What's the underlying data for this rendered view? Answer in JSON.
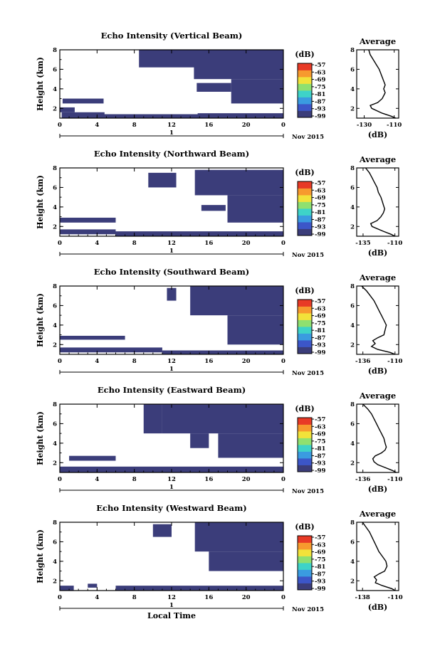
{
  "chart_data": [
    {
      "type": "heatmap",
      "title": "Echo Intensity (Vertical Beam)",
      "ylabel": "Height (km)",
      "xlim": [
        0,
        24
      ],
      "ylim": [
        1,
        8
      ],
      "xticks": [
        "0",
        "4",
        "8",
        "12",
        "16",
        "20",
        "0"
      ],
      "yticks": [
        "2",
        "4",
        "6",
        "8"
      ],
      "date_axis": {
        "day_label": "1",
        "month_label": "Nov 2015"
      },
      "colorbar": {
        "unit": "(dB)",
        "ticks": [
          "-57",
          "-63",
          "-69",
          "-75",
          "-81",
          "-87",
          "-93",
          "-99"
        ],
        "colors": [
          "#3b3d7a",
          "#3c56c8",
          "#3a9be0",
          "#3ed3c8",
          "#8fe070",
          "#f2e23a",
          "#f79a2e",
          "#e83a26"
        ]
      },
      "echo_regions": [
        {
          "x": [
            0.2,
            4.8
          ],
          "y": [
            1.0,
            1.6
          ]
        },
        {
          "x": [
            0.0,
            1.6
          ],
          "y": [
            1.6,
            2.1
          ]
        },
        {
          "x": [
            0.3,
            4.7
          ],
          "y": [
            2.5,
            3.0
          ]
        },
        {
          "x": [
            4.6,
            14.9
          ],
          "y": [
            1.0,
            1.4
          ]
        },
        {
          "x": [
            8.5,
            15.0
          ],
          "y": [
            6.2,
            8.0
          ]
        },
        {
          "x": [
            14.8,
            24.0
          ],
          "y": [
            1.0,
            1.5
          ]
        },
        {
          "x": [
            14.7,
            18.4
          ],
          "y": [
            3.7,
            4.6
          ]
        },
        {
          "x": [
            14.4,
            24.0
          ],
          "y": [
            5.0,
            8.0
          ]
        },
        {
          "x": [
            18.4,
            24.0
          ],
          "y": [
            2.5,
            5.0
          ]
        }
      ],
      "profile": {
        "title": "Average",
        "xlabel": "(dB)",
        "xticks": [
          "-130",
          "-110"
        ],
        "xlim": [
          -135,
          -107
        ],
        "ylim": [
          1,
          8
        ],
        "yticks": [
          "2",
          "4",
          "6",
          "8"
        ],
        "heights": [
          1.0,
          1.2,
          1.5,
          2.0,
          2.3,
          2.6,
          3.0,
          3.3,
          3.6,
          4.0,
          4.4,
          4.8,
          5.2,
          5.6,
          6.0,
          6.5,
          7.0,
          7.5,
          8.0
        ],
        "values": [
          -109,
          -112,
          -118,
          -125,
          -126,
          -121,
          -118,
          -117,
          -116,
          -117,
          -116,
          -117,
          -118,
          -119,
          -120,
          -122,
          -124,
          -126,
          -127
        ]
      }
    },
    {
      "type": "heatmap",
      "title": "Echo Intensity (Northward Beam)",
      "ylabel": "Height (km)",
      "xlim": [
        0,
        24
      ],
      "ylim": [
        1,
        8
      ],
      "xticks": [
        "0",
        "4",
        "8",
        "12",
        "16",
        "20",
        "0"
      ],
      "yticks": [
        "2",
        "4",
        "6",
        "8"
      ],
      "date_axis": {
        "day_label": "1",
        "month_label": "Nov 2015"
      },
      "colorbar": {
        "unit": "(dB)",
        "ticks": [
          "-57",
          "-63",
          "-69",
          "-75",
          "-81",
          "-87",
          "-93",
          "-99"
        ],
        "colors": [
          "#3b3d7a",
          "#3c56c8",
          "#3a9be0",
          "#3ed3c8",
          "#8fe070",
          "#f2e23a",
          "#f79a2e",
          "#e83a26"
        ]
      },
      "echo_regions": [
        {
          "x": [
            0.0,
            6.0
          ],
          "y": [
            1.2,
            1.7
          ]
        },
        {
          "x": [
            0.0,
            6.0
          ],
          "y": [
            2.4,
            2.9
          ]
        },
        {
          "x": [
            6.0,
            24.0
          ],
          "y": [
            1.0,
            1.5
          ]
        },
        {
          "x": [
            9.5,
            12.5
          ],
          "y": [
            6.0,
            7.5
          ]
        },
        {
          "x": [
            14.5,
            24.0
          ],
          "y": [
            5.2,
            7.8
          ]
        },
        {
          "x": [
            15.2,
            17.8
          ],
          "y": [
            3.6,
            4.2
          ]
        },
        {
          "x": [
            18.0,
            24.0
          ],
          "y": [
            2.4,
            5.2
          ]
        }
      ],
      "profile": {
        "title": "Average",
        "xlabel": "(dB)",
        "xticks": [
          "-135",
          "-110"
        ],
        "xlim": [
          -140,
          -107
        ],
        "ylim": [
          1,
          8
        ],
        "yticks": [
          "2",
          "4",
          "6",
          "8"
        ],
        "heights": [
          1.0,
          1.2,
          1.5,
          2.0,
          2.3,
          2.6,
          3.0,
          3.4,
          3.8,
          4.2,
          4.6,
          5.0,
          5.5,
          6.0,
          6.5,
          7.0,
          7.5,
          8.0
        ],
        "values": [
          -110,
          -113,
          -119,
          -128,
          -129,
          -124,
          -121,
          -119,
          -118,
          -119,
          -120,
          -121,
          -123,
          -124,
          -126,
          -128,
          -130,
          -133
        ]
      }
    },
    {
      "type": "heatmap",
      "title": "Echo Intensity (Southward Beam)",
      "ylabel": "Height (km)",
      "xlim": [
        0,
        24
      ],
      "ylim": [
        1,
        8
      ],
      "xticks": [
        "0",
        "4",
        "8",
        "12",
        "16",
        "20",
        "0"
      ],
      "yticks": [
        "2",
        "4",
        "6",
        "8"
      ],
      "date_axis": {
        "day_label": "1",
        "month_label": "Nov 2015"
      },
      "colorbar": {
        "unit": "(dB)",
        "ticks": [
          "-57",
          "-63",
          "-69",
          "-75",
          "-81",
          "-87",
          "-93",
          "-99"
        ],
        "colors": [
          "#3b3d7a",
          "#3c56c8",
          "#3a9be0",
          "#3ed3c8",
          "#8fe070",
          "#f2e23a",
          "#f79a2e",
          "#e83a26"
        ]
      },
      "echo_regions": [
        {
          "x": [
            0.0,
            11.0
          ],
          "y": [
            1.2,
            1.7
          ]
        },
        {
          "x": [
            0.0,
            7.0
          ],
          "y": [
            2.5,
            2.9
          ]
        },
        {
          "x": [
            11.0,
            24.0
          ],
          "y": [
            1.0,
            1.4
          ]
        },
        {
          "x": [
            11.5,
            12.5
          ],
          "y": [
            6.5,
            7.8
          ]
        },
        {
          "x": [
            14.0,
            24.0
          ],
          "y": [
            5.0,
            8.0
          ]
        },
        {
          "x": [
            18.0,
            24.0
          ],
          "y": [
            2.0,
            5.0
          ]
        }
      ],
      "profile": {
        "title": "Average",
        "xlabel": "(dB)",
        "xticks": [
          "-136",
          "-110"
        ],
        "xlim": [
          -141,
          -107
        ],
        "ylim": [
          1,
          8
        ],
        "yticks": [
          "2",
          "4",
          "6",
          "8"
        ],
        "heights": [
          1.0,
          1.2,
          1.5,
          1.8,
          2.1,
          2.4,
          2.7,
          3.0,
          3.5,
          4.0,
          4.5,
          5.0,
          5.5,
          6.0,
          6.5,
          7.0,
          7.5,
          8.0
        ],
        "values": [
          -110,
          -114,
          -124,
          -129,
          -126,
          -128,
          -124,
          -119,
          -118,
          -117,
          -119,
          -121,
          -123,
          -125,
          -127,
          -130,
          -133,
          -137
        ]
      }
    },
    {
      "type": "heatmap",
      "title": "Echo Intensity (Eastward Beam)",
      "ylabel": "Height (km)",
      "xlim": [
        0,
        24
      ],
      "ylim": [
        1,
        8
      ],
      "xticks": [
        "0",
        "4",
        "8",
        "12",
        "16",
        "20",
        "0"
      ],
      "yticks": [
        "2",
        "4",
        "6",
        "8"
      ],
      "date_axis": {
        "day_label": "1",
        "month_label": "Nov 2015"
      },
      "colorbar": {
        "unit": "(dB)",
        "ticks": [
          "-57",
          "-63",
          "-69",
          "-75",
          "-81",
          "-87",
          "-93",
          "-99"
        ],
        "colors": [
          "#3b3d7a",
          "#3c56c8",
          "#3a9be0",
          "#3ed3c8",
          "#8fe070",
          "#f2e23a",
          "#f79a2e",
          "#e83a26"
        ]
      },
      "echo_regions": [
        {
          "x": [
            0.0,
            24.0
          ],
          "y": [
            1.0,
            1.6
          ]
        },
        {
          "x": [
            1.0,
            6.0
          ],
          "y": [
            2.2,
            2.7
          ]
        },
        {
          "x": [
            9.0,
            11.0
          ],
          "y": [
            5.0,
            8.0
          ]
        },
        {
          "x": [
            11.0,
            24.0
          ],
          "y": [
            5.0,
            8.0
          ]
        },
        {
          "x": [
            17.0,
            24.0
          ],
          "y": [
            2.5,
            5.0
          ]
        },
        {
          "x": [
            14.0,
            16.0
          ],
          "y": [
            3.5,
            5.0
          ]
        }
      ],
      "profile": {
        "title": "Average",
        "xlabel": "(dB)",
        "xticks": [
          "-136",
          "-110"
        ],
        "xlim": [
          -141,
          -107
        ],
        "ylim": [
          1,
          8
        ],
        "yticks": [
          "2",
          "4",
          "6",
          "8"
        ],
        "heights": [
          1.0,
          1.2,
          1.5,
          1.8,
          2.1,
          2.4,
          2.7,
          3.0,
          3.3,
          3.6,
          4.0,
          4.5,
          5.0,
          5.5,
          6.0,
          6.5,
          7.0,
          7.5,
          8.0
        ],
        "values": [
          -109,
          -112,
          -118,
          -124,
          -127,
          -128,
          -126,
          -121,
          -118,
          -117,
          -118,
          -119,
          -121,
          -123,
          -125,
          -127,
          -129,
          -132,
          -136
        ]
      }
    },
    {
      "type": "heatmap",
      "title": "Echo Intensity (Westward Beam)",
      "ylabel": "Height (km)",
      "xlim": [
        0,
        24
      ],
      "ylim": [
        1,
        8
      ],
      "xticks": [
        "0",
        "4",
        "8",
        "12",
        "16",
        "20",
        "0"
      ],
      "yticks": [
        "2",
        "4",
        "6",
        "8"
      ],
      "date_axis": {
        "day_label": "1",
        "month_label": "Nov 2015"
      },
      "xlabel": "Local Time",
      "colorbar": {
        "unit": "(dB)",
        "ticks": [
          "-57",
          "-63",
          "-69",
          "-75",
          "-81",
          "-87",
          "-93",
          "-99"
        ],
        "colors": [
          "#3b3d7a",
          "#3c56c8",
          "#3a9be0",
          "#3ed3c8",
          "#8fe070",
          "#f2e23a",
          "#f79a2e",
          "#e83a26"
        ]
      },
      "echo_regions": [
        {
          "x": [
            0.0,
            1.5
          ],
          "y": [
            1.0,
            1.5
          ]
        },
        {
          "x": [
            6.0,
            24.0
          ],
          "y": [
            1.0,
            1.5
          ]
        },
        {
          "x": [
            3.0,
            4.0
          ],
          "y": [
            1.3,
            1.7
          ]
        },
        {
          "x": [
            14.5,
            24.0
          ],
          "y": [
            5.0,
            8.0
          ]
        },
        {
          "x": [
            16.0,
            24.0
          ],
          "y": [
            3.0,
            5.0
          ]
        },
        {
          "x": [
            10.0,
            12.0
          ],
          "y": [
            6.5,
            7.8
          ]
        }
      ],
      "profile": {
        "title": "Average",
        "xlabel": "(dB)",
        "xticks": [
          "-138",
          "-110"
        ],
        "xlim": [
          -143,
          -107
        ],
        "ylim": [
          1,
          8
        ],
        "yticks": [
          "2",
          "4",
          "6",
          "8"
        ],
        "heights": [
          1.0,
          1.2,
          1.5,
          1.8,
          2.1,
          2.4,
          2.7,
          3.0,
          3.5,
          4.0,
          4.5,
          5.0,
          5.5,
          6.0,
          6.5,
          7.0,
          7.5,
          8.0
        ],
        "values": [
          -110,
          -113,
          -121,
          -127,
          -126,
          -128,
          -124,
          -119,
          -117,
          -118,
          -121,
          -124,
          -126,
          -128,
          -130,
          -132,
          -135,
          -138
        ]
      }
    }
  ]
}
